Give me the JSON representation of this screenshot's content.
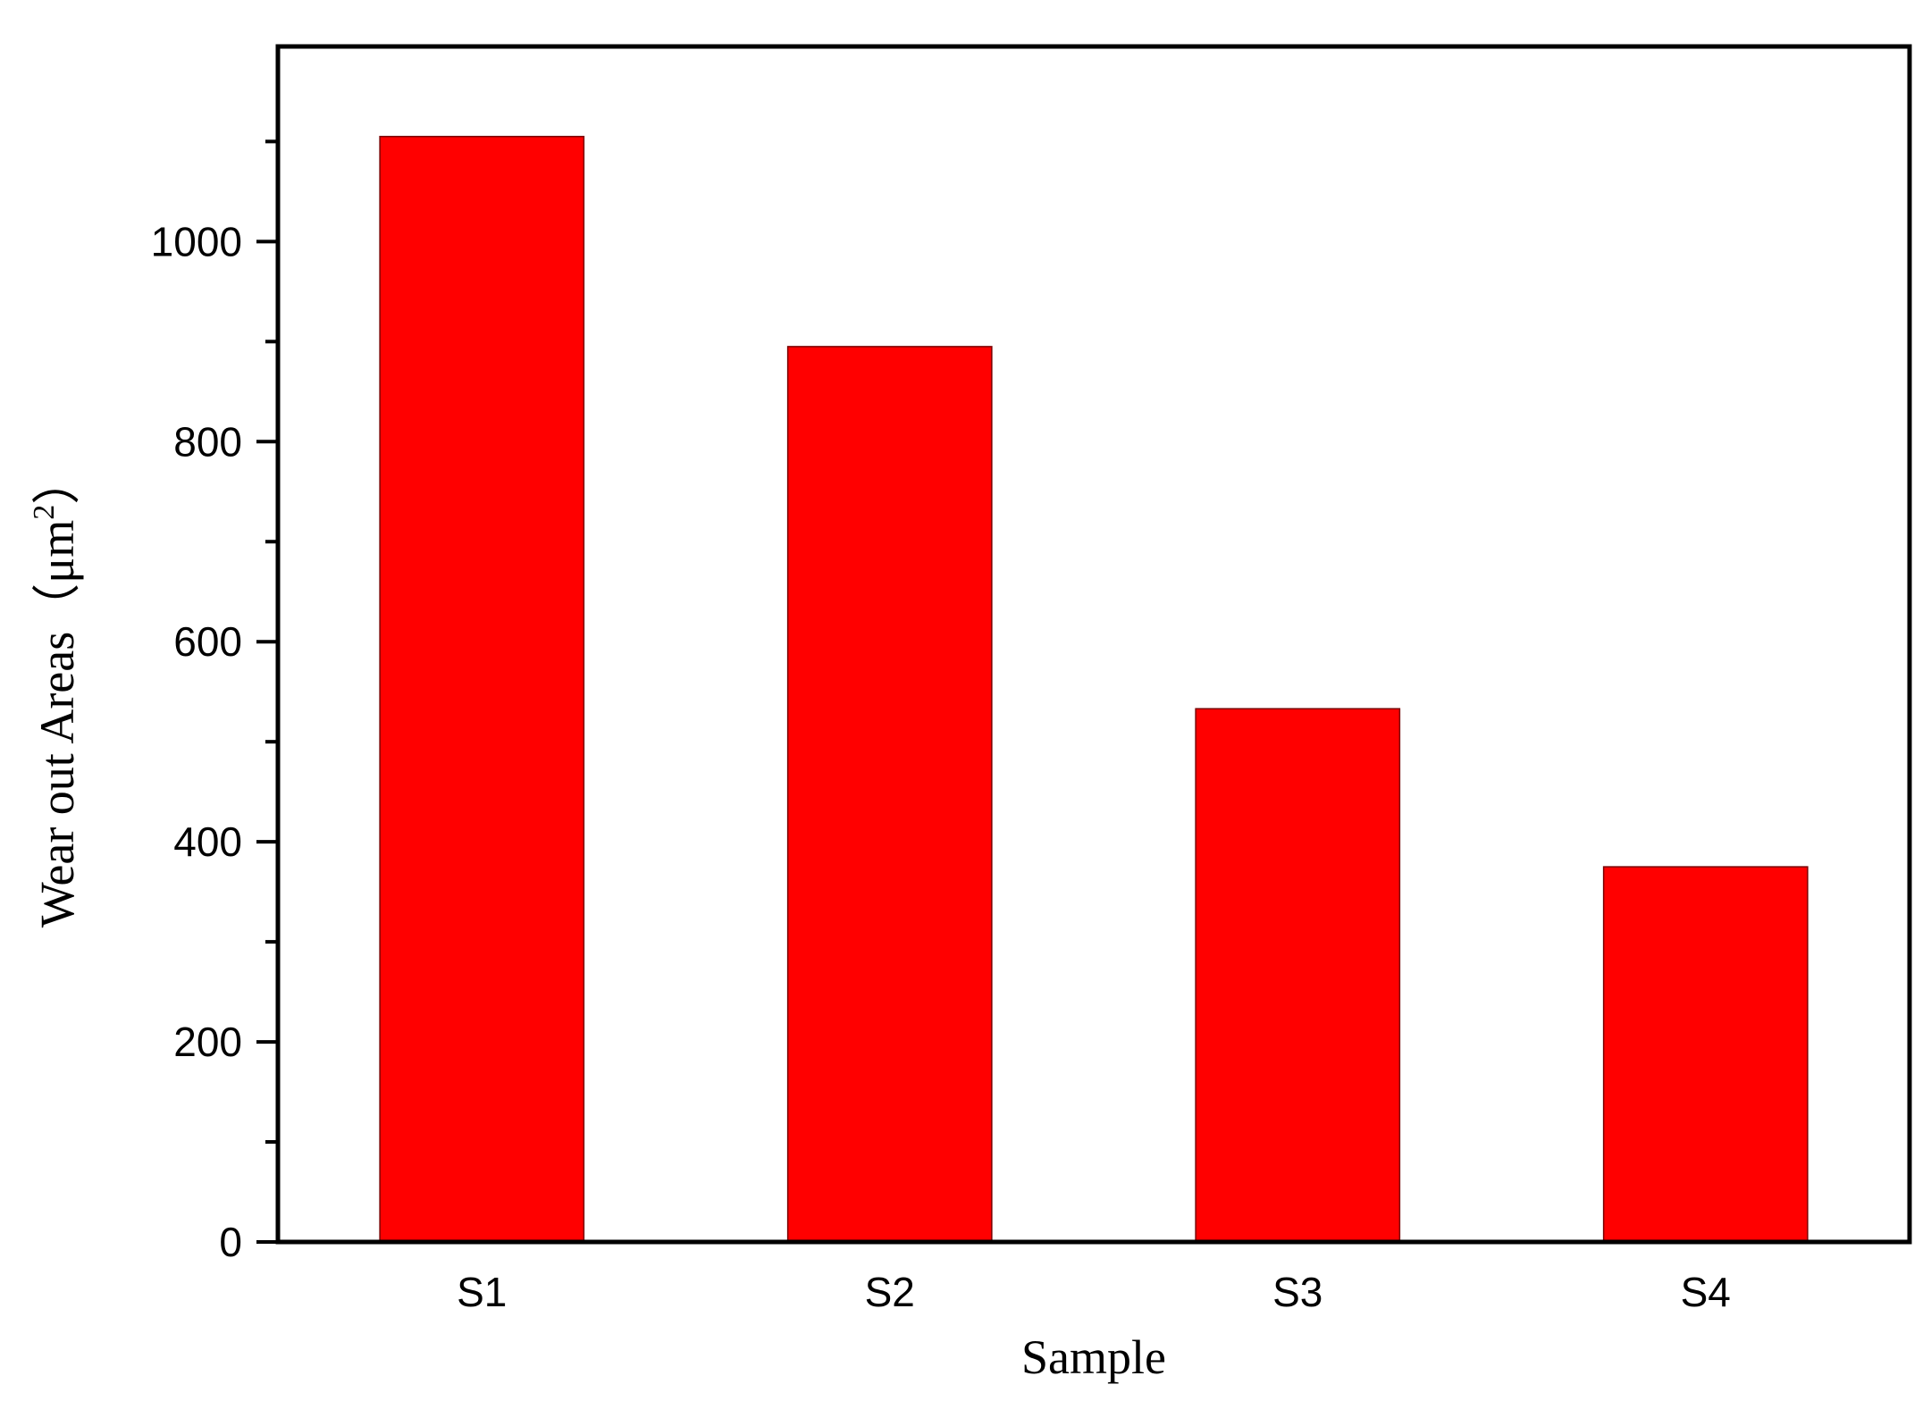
{
  "chart_data": {
    "type": "bar",
    "categories": [
      "S1",
      "S2",
      "S3",
      "S4"
    ],
    "values": [
      1105,
      895,
      533,
      375
    ],
    "title": "",
    "xlabel": "Sample",
    "ylabel": {
      "text": "Wear out Areas（μm",
      "superscript": "2",
      "close": "）"
    },
    "ylim": [
      0,
      1195
    ],
    "yticks": [
      0,
      200,
      400,
      600,
      800,
      1000
    ],
    "y_minor_step": 100,
    "grid": false,
    "legend": "none",
    "bar_color": "#ff0000"
  }
}
